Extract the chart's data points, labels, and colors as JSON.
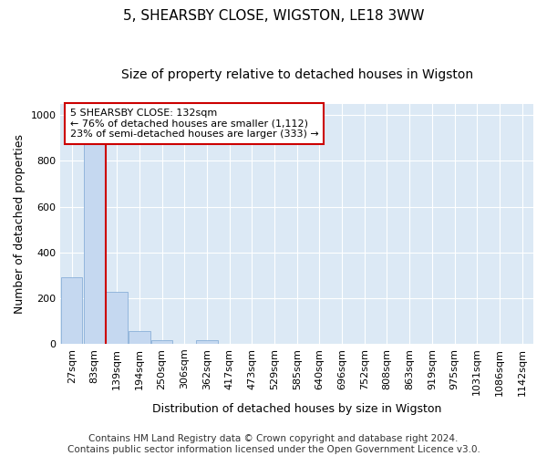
{
  "title": "5, SHEARSBY CLOSE, WIGSTON, LE18 3WW",
  "subtitle": "Size of property relative to detached houses in Wigston",
  "xlabel": "Distribution of detached houses by size in Wigston",
  "ylabel": "Number of detached properties",
  "bar_labels": [
    "27sqm",
    "83sqm",
    "139sqm",
    "194sqm",
    "250sqm",
    "306sqm",
    "362sqm",
    "417sqm",
    "473sqm",
    "529sqm",
    "585sqm",
    "640sqm",
    "696sqm",
    "752sqm",
    "808sqm",
    "863sqm",
    "919sqm",
    "975sqm",
    "1031sqm",
    "1086sqm",
    "1142sqm"
  ],
  "bar_values": [
    290,
    900,
    225,
    55,
    15,
    0,
    15,
    0,
    0,
    0,
    0,
    0,
    0,
    0,
    0,
    0,
    0,
    0,
    0,
    0,
    0
  ],
  "bar_color": "#c5d8f0",
  "bar_edge_color": "#8ab0d8",
  "vline_color": "#cc0000",
  "annotation_text": "5 SHEARSBY CLOSE: 132sqm\n← 76% of detached houses are smaller (1,112)\n23% of semi-detached houses are larger (333) →",
  "annotation_box_color": "#ffffff",
  "annotation_box_edge_color": "#cc0000",
  "ylim": [
    0,
    1050
  ],
  "yticks": [
    0,
    200,
    400,
    600,
    800,
    1000
  ],
  "grid_color": "#d0dce8",
  "background_color": "#dce9f5",
  "plot_bg_color": "#dce9f5",
  "footer": "Contains HM Land Registry data © Crown copyright and database right 2024.\nContains public sector information licensed under the Open Government Licence v3.0.",
  "title_fontsize": 11,
  "subtitle_fontsize": 10,
  "xlabel_fontsize": 9,
  "ylabel_fontsize": 9,
  "tick_fontsize": 8,
  "footer_fontsize": 7.5
}
